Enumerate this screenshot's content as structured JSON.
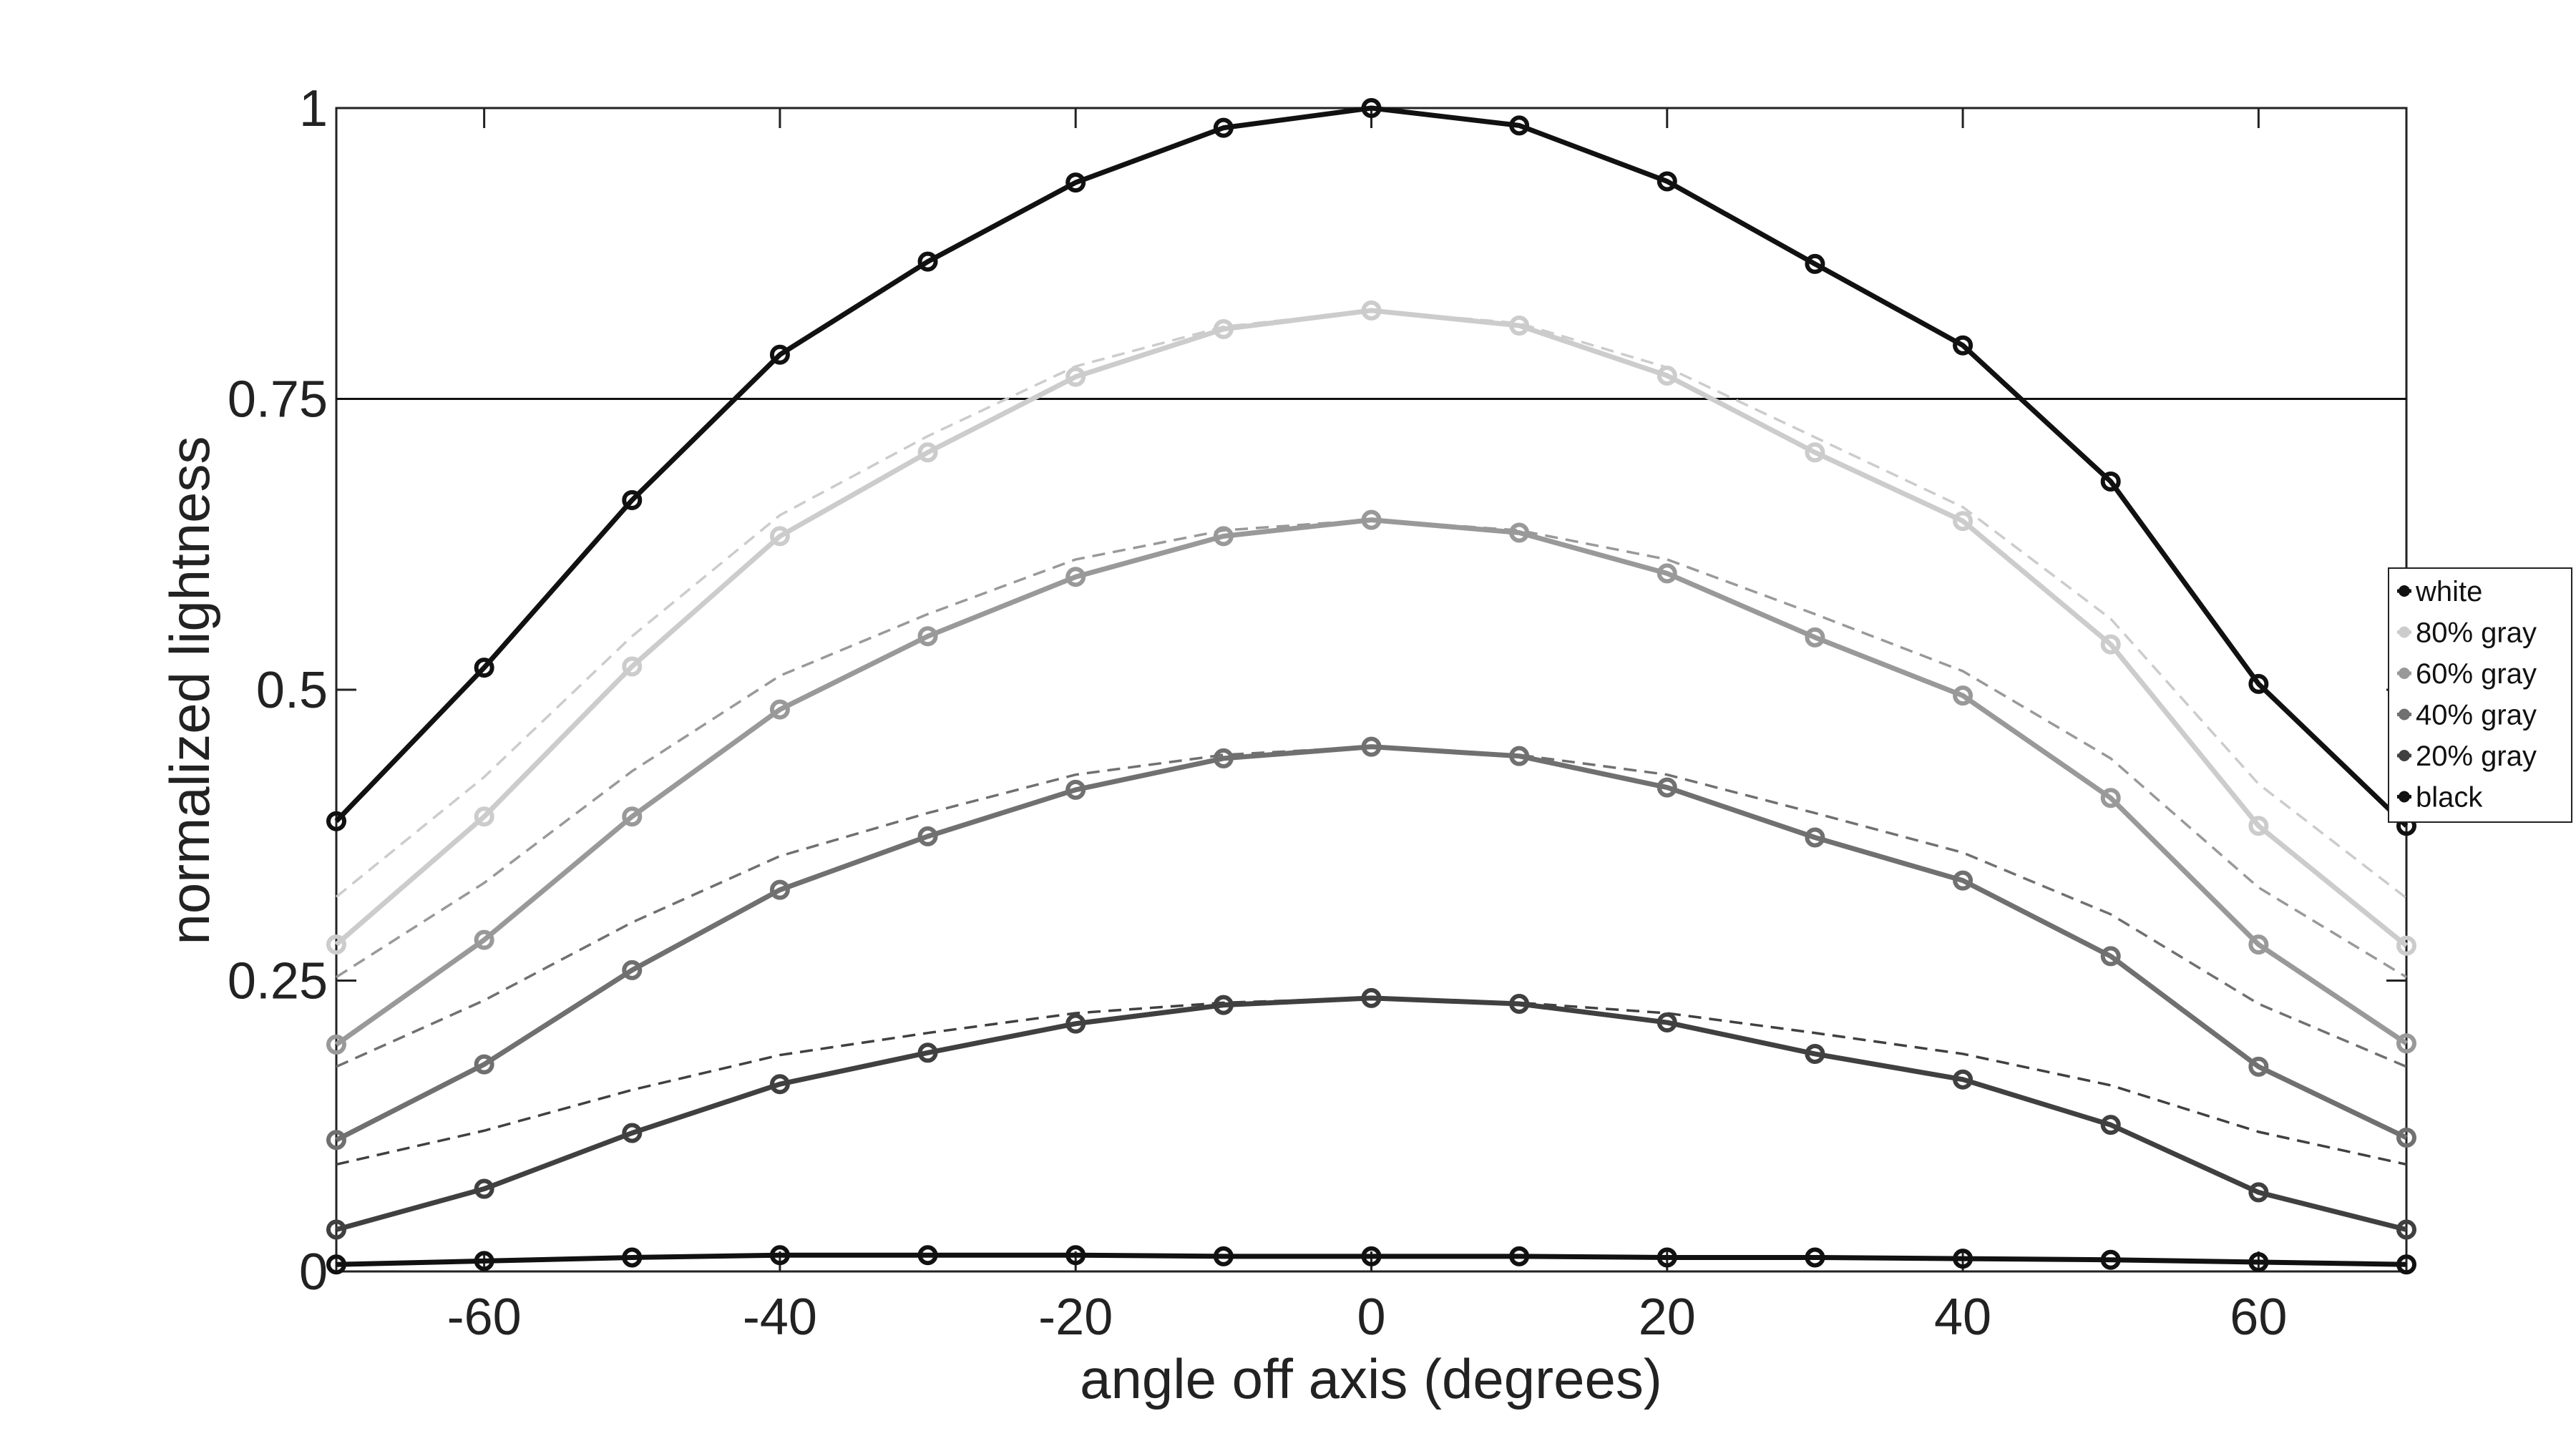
{
  "chart_data": {
    "type": "line",
    "title": "",
    "xlabel": "angle off axis (degrees)",
    "ylabel": "normalized lightness",
    "xlim": [
      -70,
      70
    ],
    "ylim": [
      0,
      1
    ],
    "x": [
      -70,
      -60,
      -50,
      -40,
      -30,
      -20,
      -10,
      0,
      10,
      20,
      30,
      40,
      50,
      60,
      70
    ],
    "xticks": [
      -60,
      -40,
      -20,
      0,
      20,
      40,
      60
    ],
    "xtick_labels": [
      "-60",
      "-40",
      "-20",
      "0",
      "20",
      "40",
      "60"
    ],
    "yticks": [
      0,
      0.25,
      0.5,
      0.75,
      1
    ],
    "ytick_labels": [
      "0",
      "0.25",
      "0.5",
      "0.75",
      "1"
    ],
    "reference_line": 0.75,
    "grid": false,
    "legend_position": "right",
    "series": [
      {
        "name": "white",
        "color": "#111111",
        "values": [
          0.387,
          0.519,
          0.663,
          0.788,
          0.868,
          0.936,
          0.983,
          1.0,
          0.985,
          0.937,
          0.866,
          0.796,
          0.679,
          0.505,
          0.383
        ]
      },
      {
        "name": "80% gray",
        "color": "#cccccc",
        "values": [
          0.281,
          0.391,
          0.52,
          0.632,
          0.704,
          0.769,
          0.81,
          0.826,
          0.813,
          0.77,
          0.704,
          0.645,
          0.539,
          0.383,
          0.28
        ]
      },
      {
        "name": "60% gray",
        "color": "#999999",
        "values": [
          0.195,
          0.285,
          0.391,
          0.483,
          0.546,
          0.597,
          0.632,
          0.646,
          0.635,
          0.6,
          0.545,
          0.495,
          0.407,
          0.281,
          0.196
        ]
      },
      {
        "name": "40% gray",
        "color": "#707070",
        "values": [
          0.113,
          0.178,
          0.259,
          0.328,
          0.374,
          0.414,
          0.441,
          0.451,
          0.443,
          0.416,
          0.373,
          0.336,
          0.271,
          0.176,
          0.115
        ]
      },
      {
        "name": "20% gray",
        "color": "#404040",
        "values": [
          0.036,
          0.071,
          0.119,
          0.161,
          0.188,
          0.213,
          0.229,
          0.235,
          0.23,
          0.214,
          0.187,
          0.165,
          0.126,
          0.068,
          0.036
        ]
      },
      {
        "name": "black",
        "color": "#111111",
        "values": [
          0.006,
          0.009,
          0.012,
          0.014,
          0.014,
          0.014,
          0.013,
          0.013,
          0.013,
          0.012,
          0.012,
          0.011,
          0.01,
          0.008,
          0.006
        ]
      }
    ],
    "reference_curves": [
      {
        "color": "#cccccc",
        "values": [
          0.322,
          0.425,
          0.546,
          0.65,
          0.718,
          0.778,
          0.812,
          0.826,
          0.815,
          0.777,
          0.717,
          0.657,
          0.561,
          0.419,
          0.321
        ]
      },
      {
        "color": "#999999",
        "values": [
          0.253,
          0.334,
          0.43,
          0.512,
          0.565,
          0.612,
          0.637,
          0.646,
          0.637,
          0.612,
          0.565,
          0.516,
          0.441,
          0.33,
          0.253
        ]
      },
      {
        "color": "#707070",
        "values": [
          0.176,
          0.233,
          0.3,
          0.357,
          0.394,
          0.427,
          0.444,
          0.451,
          0.444,
          0.427,
          0.394,
          0.36,
          0.307,
          0.23,
          0.176
        ]
      },
      {
        "color": "#404040",
        "values": [
          0.092,
          0.121,
          0.156,
          0.186,
          0.205,
          0.222,
          0.231,
          0.235,
          0.231,
          0.222,
          0.205,
          0.187,
          0.16,
          0.12,
          0.092
        ]
      }
    ]
  }
}
